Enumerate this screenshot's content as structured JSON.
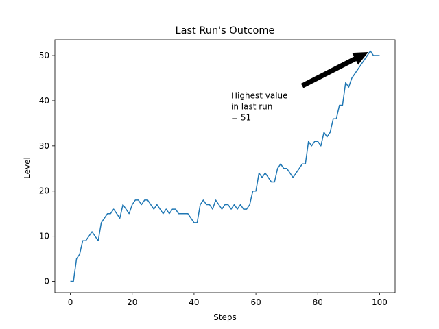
{
  "chart_data": {
    "type": "line",
    "title": "Last Run's Outcome",
    "xlabel": "Steps",
    "ylabel": "Level",
    "xlim": [
      -5,
      105
    ],
    "ylim": [
      -2.5,
      53.5
    ],
    "xticks": [
      0,
      20,
      40,
      60,
      80,
      100
    ],
    "yticks": [
      0,
      10,
      20,
      30,
      40,
      50
    ],
    "grid": false,
    "series": [
      {
        "color": "#1f77b4",
        "x": [
          0,
          1,
          2,
          3,
          4,
          5,
          6,
          7,
          8,
          9,
          10,
          11,
          12,
          13,
          14,
          15,
          16,
          17,
          18,
          19,
          20,
          21,
          22,
          23,
          24,
          25,
          26,
          27,
          28,
          29,
          30,
          31,
          32,
          33,
          34,
          35,
          36,
          37,
          38,
          39,
          40,
          41,
          42,
          43,
          44,
          45,
          46,
          47,
          48,
          49,
          50,
          51,
          52,
          53,
          54,
          55,
          56,
          57,
          58,
          59,
          60,
          61,
          62,
          63,
          64,
          65,
          66,
          67,
          68,
          69,
          70,
          71,
          72,
          73,
          74,
          75,
          76,
          77,
          78,
          79,
          80,
          81,
          82,
          83,
          84,
          85,
          86,
          87,
          88,
          89,
          90,
          91,
          92,
          93,
          94,
          95,
          96,
          97,
          98,
          99,
          100
        ],
        "y": [
          0,
          0,
          5,
          6,
          9,
          9,
          10,
          11,
          10,
          9,
          13,
          14,
          15,
          15,
          16,
          15,
          14,
          17,
          16,
          15,
          17,
          18,
          18,
          17,
          18,
          18,
          17,
          16,
          17,
          16,
          15,
          16,
          15,
          16,
          16,
          15,
          15,
          15,
          15,
          14,
          13,
          13,
          17,
          18,
          17,
          17,
          16,
          18,
          17,
          16,
          17,
          17,
          16,
          17,
          16,
          17,
          16,
          16,
          17,
          20,
          20,
          24,
          23,
          24,
          23,
          22,
          22,
          25,
          26,
          25,
          25,
          24,
          23,
          24,
          25,
          26,
          26,
          31,
          30,
          31,
          31,
          30,
          33,
          32,
          33,
          36,
          36,
          39,
          39,
          44,
          43,
          45,
          46,
          47,
          48,
          49,
          50,
          51,
          50,
          50,
          50
        ]
      }
    ],
    "annotation": {
      "lines": [
        "Highest value",
        "in last run",
        "= 51"
      ],
      "point": [
        97,
        51
      ],
      "text_pos": [
        52,
        40.5
      ]
    }
  }
}
